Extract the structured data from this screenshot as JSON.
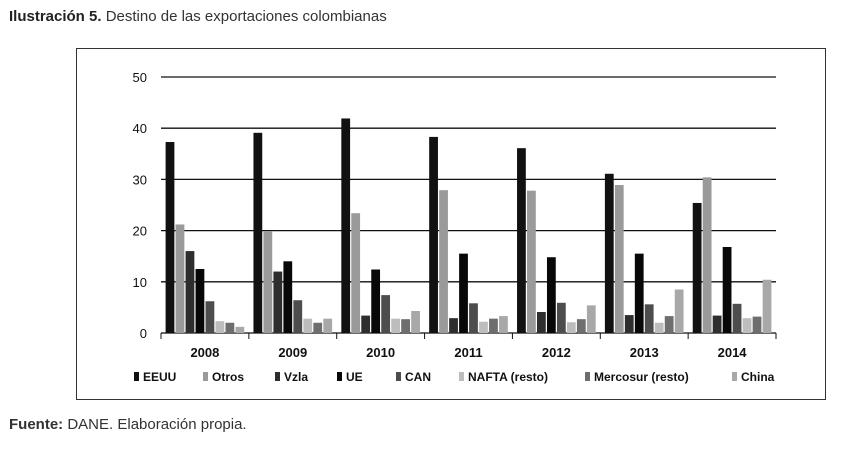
{
  "caption": {
    "lead": "Ilustración 5.",
    "text": "Destino de las exportaciones colombianas"
  },
  "source": {
    "lead": "Fuente:",
    "text": "DANE. Elaboración propia."
  },
  "chart_data": {
    "type": "bar",
    "categories": [
      "2008",
      "2009",
      "2010",
      "2011",
      "2012",
      "2013",
      "2014"
    ],
    "series": [
      {
        "name": "EEUU",
        "color": "#111111",
        "values": [
          37.3,
          39.1,
          41.9,
          38.3,
          36.1,
          31.1,
          25.4
        ]
      },
      {
        "name": "Otros",
        "color": "#9a9a9a",
        "values": [
          21.2,
          19.8,
          23.4,
          27.9,
          27.8,
          28.9,
          30.4
        ]
      },
      {
        "name": "Vzla",
        "color": "#2e2e2e",
        "values": [
          16.0,
          12.0,
          3.4,
          2.9,
          4.1,
          3.5,
          3.4
        ]
      },
      {
        "name": "UE",
        "color": "#080808",
        "values": [
          12.5,
          14.0,
          12.4,
          15.5,
          14.8,
          15.5,
          16.8
        ]
      },
      {
        "name": "CAN",
        "color": "#4d4d4d",
        "values": [
          6.2,
          6.4,
          7.4,
          5.8,
          5.9,
          5.6,
          5.7
        ]
      },
      {
        "name": "NAFTA (resto)",
        "color": "#bdbdbd",
        "values": [
          2.3,
          2.8,
          2.8,
          2.2,
          2.1,
          2.0,
          2.9
        ]
      },
      {
        "name": "Mercosur (resto)",
        "color": "#6e6e6e",
        "values": [
          2.0,
          2.0,
          2.7,
          2.8,
          2.7,
          3.3,
          3.2
        ]
      },
      {
        "name": "China",
        "color": "#a8a8a8",
        "values": [
          1.2,
          2.8,
          4.3,
          3.3,
          5.4,
          8.5,
          10.4
        ]
      }
    ],
    "ylim": [
      0,
      50
    ],
    "yticks": [
      0,
      10,
      20,
      30,
      40,
      50
    ],
    "grid": true,
    "legend": "bottom"
  }
}
